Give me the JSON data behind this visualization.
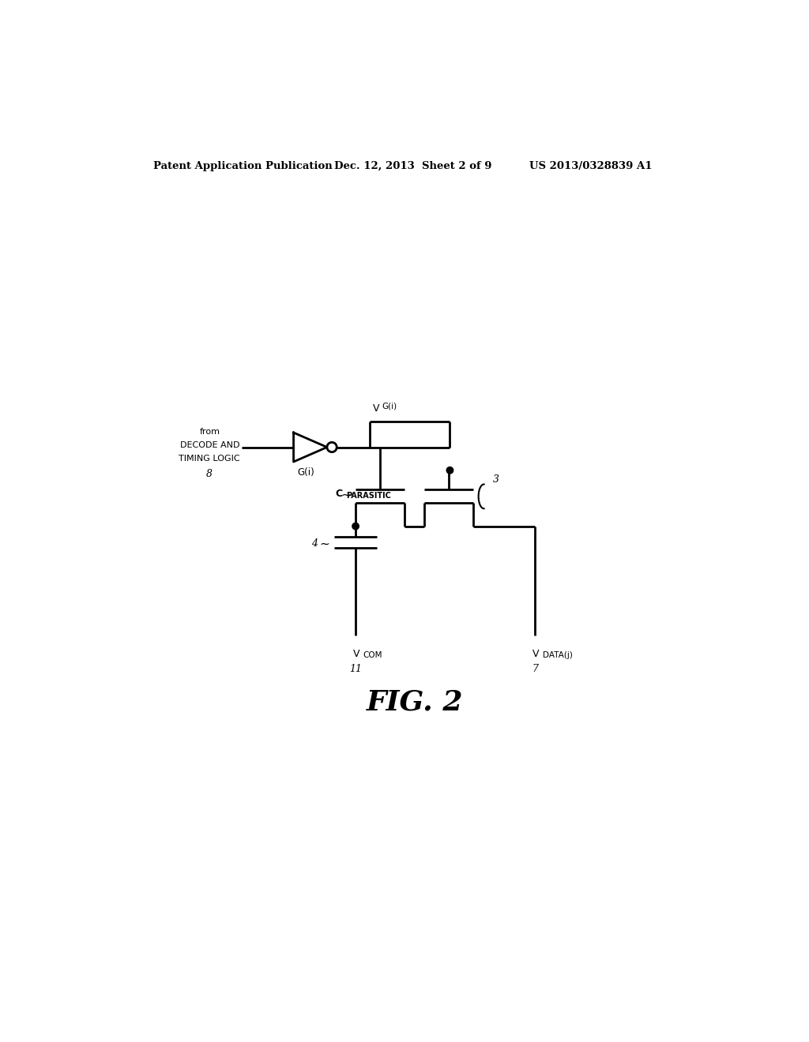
{
  "bg_color": "#ffffff",
  "line_color": "#000000",
  "header_left": "Patent Application Publication",
  "header_mid": "Dec. 12, 2013  Sheet 2 of 9",
  "header_right": "US 2013/0328839 A1",
  "fig_label": "FIG. 2",
  "from_line1": "from",
  "from_line2": "DECODE AND",
  "from_line3": "TIMING LOGIC",
  "from_num": "8",
  "vg_main": "V",
  "vg_sub": "G(i)",
  "gi_label": "G(i)",
  "cp_main": "C",
  "cp_sub": "PARASITIC",
  "num3": "3",
  "num4": "4",
  "vcom_main": "V",
  "vcom_sub": "COM",
  "vcom_num": "11",
  "vdata_main": "V",
  "vdata_sub": "DATA(j)",
  "vdata_num": "7"
}
